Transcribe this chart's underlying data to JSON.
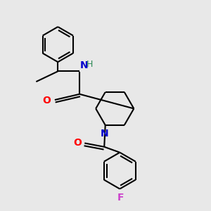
{
  "bg_color": "#e8e8e8",
  "line_color": "#000000",
  "bond_width": 1.5,
  "atom_colors": {
    "N": "#0000cd",
    "O": "#ff0000",
    "F": "#cc44cc",
    "H": "#2e8b57",
    "C": "#000000"
  },
  "font_size_atom": 10,
  "font_size_H": 9
}
